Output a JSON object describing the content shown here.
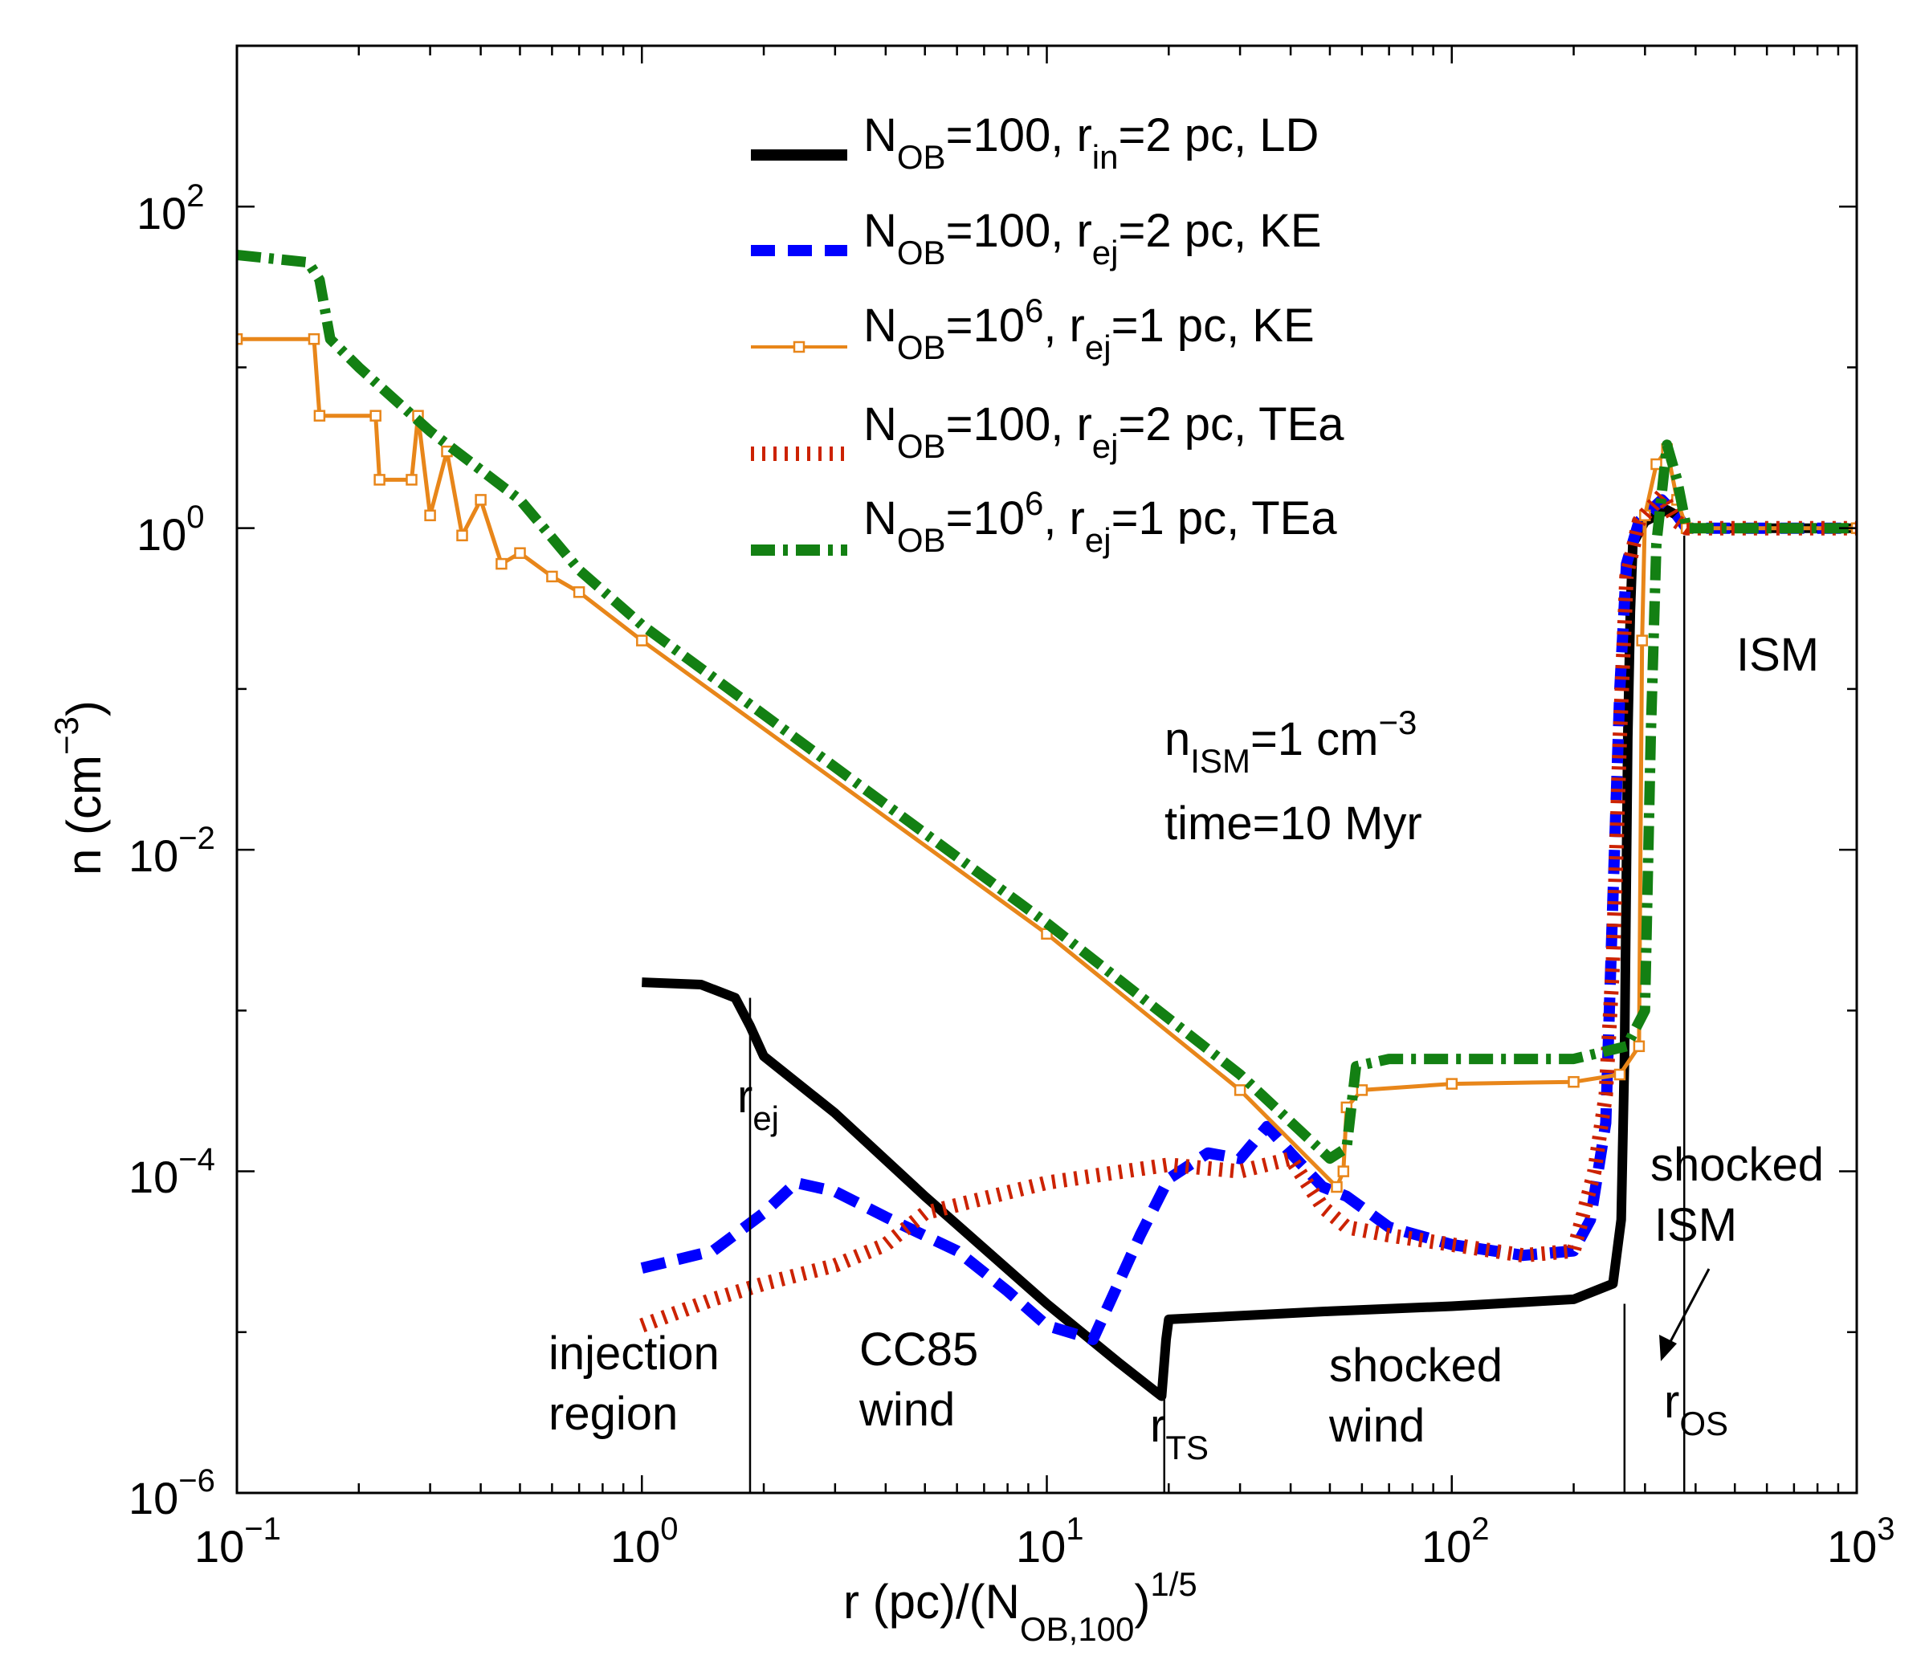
{
  "chart_data": {
    "type": "line",
    "xscale": "log",
    "yscale": "log",
    "xlim": [
      0.1,
      1000
    ],
    "ylim": [
      1e-06,
      1000
    ],
    "grid": false,
    "legend_position": "top-center",
    "xlabel_parts": [
      "r (pc)/(N",
      "OB,100",
      ")",
      "1/5"
    ],
    "ylabel_parts": [
      "n (cm",
      "−3",
      ")"
    ],
    "x_ticks": [
      {
        "base": "10",
        "exp": "−1",
        "value": 0.1
      },
      {
        "base": "10",
        "exp": "0",
        "value": 1
      },
      {
        "base": "10",
        "exp": "1",
        "value": 10
      },
      {
        "base": "10",
        "exp": "2",
        "value": 100
      },
      {
        "base": "10",
        "exp": "3",
        "value": 1000
      }
    ],
    "y_ticks": [
      {
        "base": "10",
        "exp": "−6",
        "value": 1e-06
      },
      {
        "base": "10",
        "exp": "−4",
        "value": 0.0001
      },
      {
        "base": "10",
        "exp": "−2",
        "value": 0.01
      },
      {
        "base": "10",
        "exp": "0",
        "value": 1
      },
      {
        "base": "10",
        "exp": "2",
        "value": 100
      }
    ],
    "series": [
      {
        "id": "s_ld",
        "legend": [
          "N",
          "OB",
          "=100, r",
          "in",
          "=2 pc, LD"
        ],
        "color": "#000000",
        "style": "solid-thick",
        "points": [
          [
            1.0,
            0.0015
          ],
          [
            1.4,
            0.00145
          ],
          [
            1.7,
            0.0012
          ],
          [
            1.85,
            0.0008
          ],
          [
            2.0,
            0.00052
          ],
          [
            3.0,
            0.00023
          ],
          [
            5.0,
            7e-05
          ],
          [
            10,
            1.5e-05
          ],
          [
            15,
            6.5e-06
          ],
          [
            18.5,
            4.3e-06
          ],
          [
            19.2,
            4e-06
          ],
          [
            19.7,
            9e-06
          ],
          [
            20,
            1.2e-05
          ],
          [
            50,
            1.35e-05
          ],
          [
            100,
            1.45e-05
          ],
          [
            200,
            1.6e-05
          ],
          [
            250,
            2e-05
          ],
          [
            262,
            5e-05
          ],
          [
            267,
            0.0005
          ],
          [
            272,
            0.05
          ],
          [
            276,
            0.3
          ],
          [
            280,
            0.8
          ],
          [
            300,
            1.1
          ],
          [
            340,
            1.3
          ],
          [
            360,
            1.2
          ],
          [
            380,
            1.0
          ],
          [
            1000,
            1.0
          ]
        ]
      },
      {
        "id": "s_ke100",
        "legend": [
          "N",
          "OB",
          "=100, r",
          "ej",
          "=2 pc, KE"
        ],
        "color": "#0000ff",
        "style": "dashed-thick",
        "points": [
          [
            1.0,
            2.5e-05
          ],
          [
            1.5,
            3.2e-05
          ],
          [
            2.0,
            5.5e-05
          ],
          [
            2.4,
            8.5e-05
          ],
          [
            3.0,
            7.5e-05
          ],
          [
            4.0,
            5.2e-05
          ],
          [
            6.0,
            3.2e-05
          ],
          [
            8.0,
            1.8e-05
          ],
          [
            10,
            1.1e-05
          ],
          [
            13,
            9e-06
          ],
          [
            17,
            4e-05
          ],
          [
            20,
            9e-05
          ],
          [
            25,
            0.00013
          ],
          [
            30,
            0.00012
          ],
          [
            35,
            0.00019
          ],
          [
            40,
            0.00013
          ],
          [
            48,
            8e-05
          ],
          [
            55,
            7e-05
          ],
          [
            70,
            4.5e-05
          ],
          [
            100,
            3.5e-05
          ],
          [
            150,
            3e-05
          ],
          [
            200,
            3.2e-05
          ],
          [
            220,
            5e-05
          ],
          [
            240,
            0.0002
          ],
          [
            250,
            0.005
          ],
          [
            260,
            0.1
          ],
          [
            270,
            0.6
          ],
          [
            290,
            1.1
          ],
          [
            330,
            1.5
          ],
          [
            360,
            1.2
          ],
          [
            380,
            1.0
          ],
          [
            1000,
            1.0
          ]
        ]
      },
      {
        "id": "s_ke1e6",
        "legend": [
          "N",
          "OB",
          "=10",
          "6",
          ", r",
          "ej",
          "=1 pc, KE"
        ],
        "color": "#e8861a",
        "style": "solid-squares",
        "points": [
          [
            0.1,
            15
          ],
          [
            0.155,
            15
          ],
          [
            0.16,
            5
          ],
          [
            0.22,
            5
          ],
          [
            0.225,
            2
          ],
          [
            0.27,
            2
          ],
          [
            0.28,
            5
          ],
          [
            0.3,
            1.2
          ],
          [
            0.33,
            3
          ],
          [
            0.36,
            0.9
          ],
          [
            0.4,
            1.5
          ],
          [
            0.45,
            0.6
          ],
          [
            0.5,
            0.7
          ],
          [
            0.6,
            0.5
          ],
          [
            0.7,
            0.4
          ],
          [
            1.0,
            0.2
          ],
          [
            10,
            0.003
          ],
          [
            30,
            0.00032
          ],
          [
            52,
            8e-05
          ],
          [
            54,
            0.0001
          ],
          [
            55,
            0.00025
          ],
          [
            60,
            0.00032
          ],
          [
            100,
            0.00035
          ],
          [
            200,
            0.00036
          ],
          [
            260,
            0.0004
          ],
          [
            290,
            0.0006
          ],
          [
            295,
            0.2
          ],
          [
            300,
            1.2
          ],
          [
            320,
            2.5
          ],
          [
            340,
            3.1
          ],
          [
            360,
            1.5
          ],
          [
            380,
            1.0
          ],
          [
            1000,
            1.0
          ]
        ]
      },
      {
        "id": "s_tea100",
        "legend": [
          "N",
          "OB",
          "=100, r",
          "ej",
          "=2 pc, TEa"
        ],
        "color": "#cc2200",
        "style": "hatched",
        "points": [
          [
            1.0,
            1.1e-05
          ],
          [
            1.5,
            1.6e-05
          ],
          [
            2.0,
            2e-05
          ],
          [
            3.0,
            2.6e-05
          ],
          [
            4.0,
            3.5e-05
          ],
          [
            5.0,
            5.5e-05
          ],
          [
            10,
            8.5e-05
          ],
          [
            20,
            0.00011
          ],
          [
            30,
            0.0001
          ],
          [
            40,
            0.00012
          ],
          [
            48,
            6e-05
          ],
          [
            55,
            4.5e-05
          ],
          [
            70,
            4e-05
          ],
          [
            100,
            3.5e-05
          ],
          [
            150,
            3e-05
          ],
          [
            200,
            3.2e-05
          ],
          [
            225,
            0.0001
          ],
          [
            240,
            0.0003
          ],
          [
            250,
            0.002
          ],
          [
            260,
            0.05
          ],
          [
            270,
            0.5
          ],
          [
            290,
            1.1
          ],
          [
            330,
            1.6
          ],
          [
            360,
            1.1
          ],
          [
            380,
            1.0
          ],
          [
            1000,
            1.0
          ]
        ]
      },
      {
        "id": "s_tea1e6",
        "legend": [
          "N",
          "OB",
          "=10",
          "6",
          ", r",
          "ej",
          "=1 pc, TEa"
        ],
        "color": "#138013",
        "style": "dashdot-thick",
        "points": [
          [
            0.1,
            50
          ],
          [
            0.15,
            45
          ],
          [
            0.16,
            35
          ],
          [
            0.17,
            15
          ],
          [
            0.2,
            10
          ],
          [
            0.3,
            4
          ],
          [
            0.5,
            1.5
          ],
          [
            0.7,
            0.55
          ],
          [
            1.0,
            0.25
          ],
          [
            10,
            0.0035
          ],
          [
            30,
            0.0004
          ],
          [
            50,
            0.00012
          ],
          [
            55,
            0.00014
          ],
          [
            58,
            0.00045
          ],
          [
            70,
            0.0005
          ],
          [
            100,
            0.0005
          ],
          [
            200,
            0.0005
          ],
          [
            270,
            0.0006
          ],
          [
            300,
            0.001
          ],
          [
            310,
            0.05
          ],
          [
            320,
            0.8
          ],
          [
            340,
            3.3
          ],
          [
            360,
            2.0
          ],
          [
            380,
            1.0
          ],
          [
            1000,
            1.0
          ]
        ]
      }
    ],
    "annotations": {
      "n_ism": [
        "n",
        "ISM",
        "=1 cm",
        "−3"
      ],
      "time": "time=10 Myr",
      "ism": "ISM",
      "shocked_ism": [
        "shocked",
        "ISM"
      ],
      "shocked_wind": [
        "shocked",
        "wind"
      ],
      "cc85_wind": [
        "CC85",
        "wind"
      ],
      "injection_region": [
        "injection",
        "region"
      ],
      "r_ej": [
        "r",
        "ej"
      ],
      "r_ts": [
        "r",
        "TS"
      ],
      "r_os": [
        "r",
        "OS"
      ]
    }
  }
}
